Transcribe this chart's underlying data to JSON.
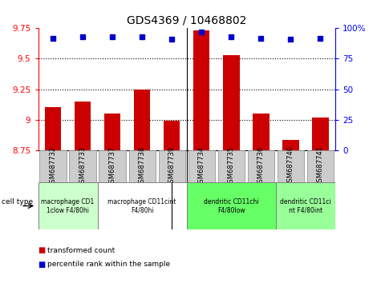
{
  "title": "GDS4369 / 10468802",
  "samples": [
    "GSM687732",
    "GSM687733",
    "GSM687737",
    "GSM687738",
    "GSM687739",
    "GSM687734",
    "GSM687735",
    "GSM687736",
    "GSM687740",
    "GSM687741"
  ],
  "bar_values": [
    9.1,
    9.15,
    9.05,
    9.25,
    8.99,
    9.73,
    9.53,
    9.05,
    8.83,
    9.02
  ],
  "percentile_values": [
    92,
    93,
    93,
    93,
    91,
    97,
    93,
    92,
    91,
    92
  ],
  "ylim": [
    8.75,
    9.75
  ],
  "yticks": [
    8.75,
    9.0,
    9.25,
    9.5,
    9.75
  ],
  "ytick_labels": [
    "8.75",
    "9",
    "9.25",
    "9.5",
    "9.75"
  ],
  "right_yticks": [
    0,
    25,
    50,
    75,
    100
  ],
  "right_ytick_labels": [
    "0",
    "25",
    "50",
    "75",
    "100%"
  ],
  "bar_color": "#cc0000",
  "dot_color": "#0000cc",
  "percentile_ylim": [
    0,
    100
  ],
  "cell_type_groups": [
    {
      "label": "macrophage CD1\n1clow F4/80hi",
      "start": 0,
      "end": 2,
      "color": "#ccffcc"
    },
    {
      "label": "macrophage CD11cint\nF4/80hi",
      "start": 2,
      "end": 5,
      "color": "#ffffff"
    },
    {
      "label": "dendritic CD11chi\nF4/80low",
      "start": 5,
      "end": 8,
      "color": "#66ff66"
    },
    {
      "label": "dendritic CD11ci\nnt F4/80int",
      "start": 8,
      "end": 10,
      "color": "#99ff99"
    }
  ],
  "grid_yticks": [
    9.0,
    9.25,
    9.5
  ],
  "separator_after": [
    4
  ],
  "gray_box_color": "#cccccc",
  "gray_box_edge": "#999999"
}
